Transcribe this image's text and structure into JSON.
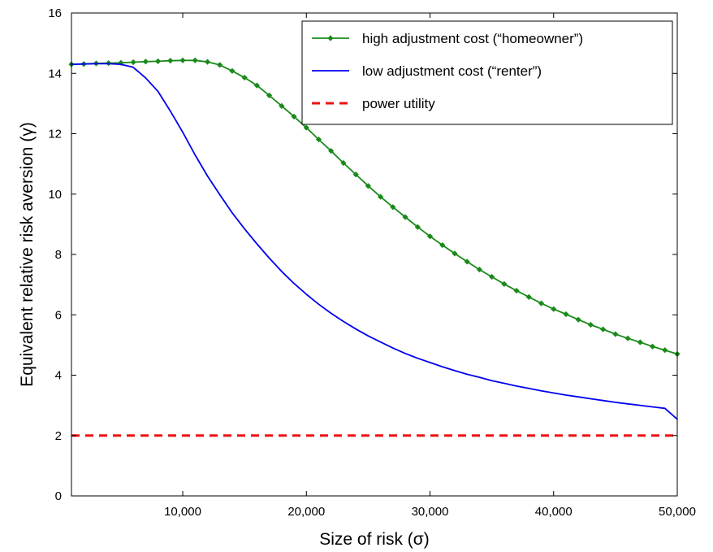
{
  "chart_data": {
    "type": "line",
    "xlabel": "Size of risk (σ)",
    "ylabel": "Equivalent relative risk aversion (γ)",
    "xlim": [
      1000,
      50000
    ],
    "ylim": [
      0,
      16
    ],
    "xticks": [
      10000,
      20000,
      30000,
      40000,
      50000
    ],
    "xtick_labels": [
      "10,000",
      "20,000",
      "30,000",
      "40,000",
      "50,000"
    ],
    "yticks": [
      0,
      2,
      4,
      6,
      8,
      10,
      12,
      14,
      16
    ],
    "ytick_labels": [
      "0",
      "2",
      "4",
      "6",
      "8",
      "10",
      "12",
      "14",
      "16"
    ],
    "grid": false,
    "legend_position": "top-right",
    "series": [
      {
        "name": "high adjustment cost (“homeowner”)",
        "color": "#1a8a1a",
        "style": "solid-diamond-markers",
        "x": [
          1000,
          2000,
          3000,
          4000,
          5000,
          6000,
          7000,
          8000,
          9000,
          10000,
          11000,
          12000,
          13000,
          14000,
          15000,
          16000,
          17000,
          18000,
          19000,
          20000,
          21000,
          22000,
          23000,
          24000,
          25000,
          26000,
          27000,
          28000,
          29000,
          30000,
          31000,
          32000,
          33000,
          34000,
          35000,
          36000,
          37000,
          38000,
          39000,
          40000,
          41000,
          42000,
          43000,
          44000,
          45000,
          46000,
          47000,
          48000,
          49000,
          50000
        ],
        "y": [
          14.3,
          14.31,
          14.33,
          14.34,
          14.35,
          14.37,
          14.39,
          14.4,
          14.42,
          14.43,
          14.43,
          14.38,
          14.28,
          14.08,
          13.86,
          13.6,
          13.27,
          12.92,
          12.57,
          12.2,
          11.81,
          11.43,
          11.03,
          10.65,
          10.27,
          9.91,
          9.57,
          9.24,
          8.91,
          8.6,
          8.31,
          8.03,
          7.76,
          7.5,
          7.26,
          7.02,
          6.8,
          6.59,
          6.38,
          6.19,
          6.02,
          5.84,
          5.67,
          5.52,
          5.36,
          5.22,
          5.09,
          4.95,
          4.83,
          4.7
        ]
      },
      {
        "name": "low adjustment cost (“renter”)",
        "color": "#0000ee",
        "style": "solid",
        "x": [
          1000,
          2000,
          3000,
          4000,
          5000,
          6000,
          7000,
          8000,
          9000,
          10000,
          11000,
          12000,
          13000,
          14000,
          15000,
          16000,
          17000,
          18000,
          19000,
          20000,
          21000,
          22000,
          23000,
          24000,
          25000,
          26000,
          27000,
          28000,
          29000,
          30000,
          31000,
          32000,
          33000,
          34000,
          35000,
          36000,
          37000,
          38000,
          39000,
          40000,
          41000,
          42000,
          43000,
          44000,
          45000,
          46000,
          47000,
          48000,
          49000,
          50000
        ],
        "y": [
          14.3,
          14.31,
          14.32,
          14.32,
          14.3,
          14.2,
          13.85,
          13.4,
          12.75,
          12.05,
          11.3,
          10.6,
          9.98,
          9.38,
          8.85,
          8.35,
          7.88,
          7.44,
          7.04,
          6.68,
          6.35,
          6.05,
          5.78,
          5.53,
          5.3,
          5.1,
          4.9,
          4.72,
          4.56,
          4.42,
          4.28,
          4.15,
          4.03,
          3.93,
          3.82,
          3.73,
          3.64,
          3.56,
          3.48,
          3.41,
          3.34,
          3.28,
          3.22,
          3.16,
          3.1,
          3.05,
          3.0,
          2.95,
          2.9,
          2.54
        ]
      },
      {
        "name": "power utility",
        "color": "#ee1111",
        "style": "dashed",
        "x": [
          1000,
          50000
        ],
        "y": [
          2.0,
          2.0
        ]
      }
    ]
  }
}
